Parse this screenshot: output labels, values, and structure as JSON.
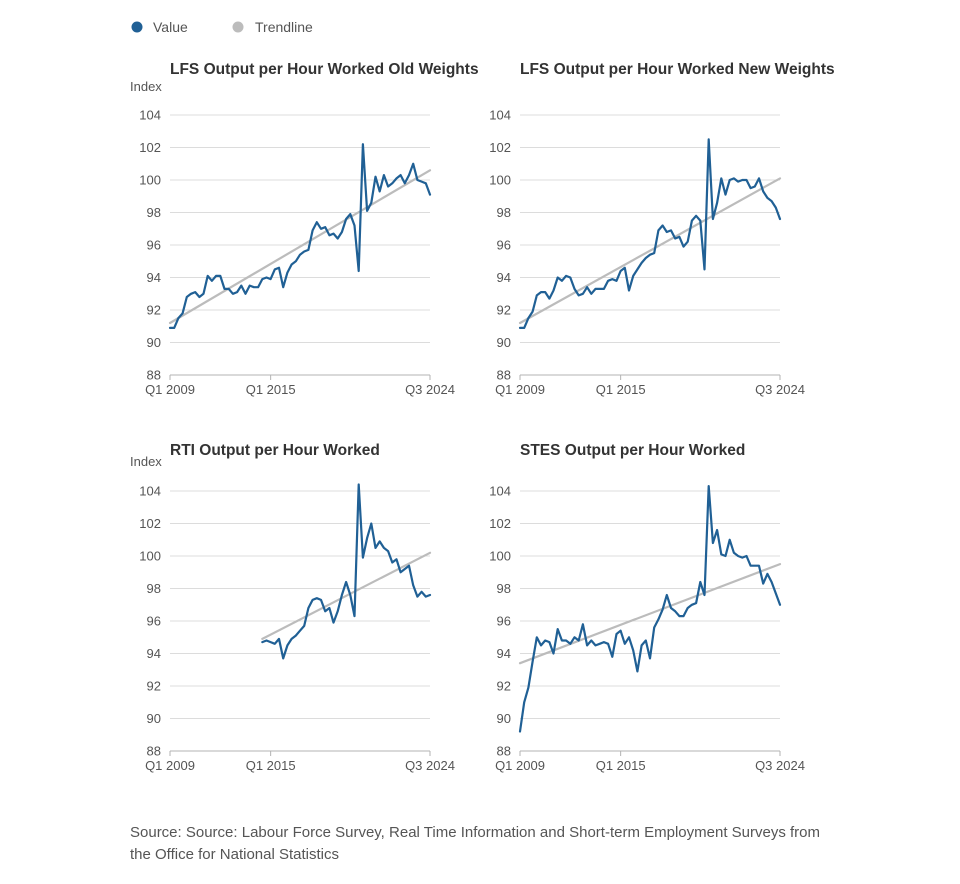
{
  "legend": [
    {
      "label": "Value",
      "color": "#206095"
    },
    {
      "label": "Trendline",
      "color": "#bcbcbc"
    }
  ],
  "source": "Source: Source: Labour Force Survey, Real Time Information and Short-term Employment Surveys from the Office for National Statistics",
  "chart_data": [
    {
      "type": "line",
      "title": "LFS Output per Hour Worked Old Weights",
      "ylabel": "Index",
      "ylim": [
        88,
        104
      ],
      "yticks": [
        88,
        90,
        92,
        94,
        96,
        98,
        100,
        102,
        104
      ],
      "xlim": [
        0,
        62
      ],
      "xticks": [
        {
          "pos": 0,
          "label": "Q1 2009"
        },
        {
          "pos": 24,
          "label": "Q1 2015"
        },
        {
          "pos": 62,
          "label": "Q3 2024"
        }
      ],
      "grid": true,
      "series": [
        {
          "name": "Value",
          "color": "#206095",
          "x": [
            0,
            1,
            2,
            3,
            4,
            5,
            6,
            7,
            8,
            9,
            10,
            11,
            12,
            13,
            14,
            15,
            16,
            17,
            18,
            19,
            20,
            21,
            22,
            23,
            24,
            25,
            26,
            27,
            28,
            29,
            30,
            31,
            32,
            33,
            34,
            35,
            36,
            37,
            38,
            39,
            40,
            41,
            42,
            43,
            44,
            45,
            46,
            47,
            48,
            49,
            50,
            51,
            52,
            53,
            54,
            55,
            56,
            57,
            58,
            59,
            60,
            61,
            62
          ],
          "values": [
            90.9,
            90.9,
            91.5,
            91.8,
            92.8,
            93.0,
            93.1,
            92.8,
            93.0,
            94.1,
            93.8,
            94.1,
            94.1,
            93.3,
            93.3,
            93.0,
            93.1,
            93.5,
            93.0,
            93.5,
            93.4,
            93.4,
            93.9,
            94.0,
            93.9,
            94.5,
            94.6,
            93.4,
            94.3,
            94.8,
            95.0,
            95.4,
            95.6,
            95.7,
            96.9,
            97.4,
            97.0,
            97.1,
            96.6,
            96.7,
            96.4,
            96.8,
            97.6,
            97.9,
            97.2,
            94.4,
            102.2,
            98.1,
            98.6,
            100.2,
            99.3,
            100.3,
            99.6,
            99.8,
            100.1,
            100.3,
            99.8,
            100.3,
            101.0,
            100.0,
            99.9,
            99.8,
            99.1
          ]
        },
        {
          "name": "Trendline",
          "color": "#bcbcbc",
          "x": [
            0,
            62
          ],
          "values": [
            91.2,
            100.6
          ]
        }
      ]
    },
    {
      "type": "line",
      "title": "LFS Output per Hour Worked New Weights",
      "ylabel": "",
      "ylim": [
        88,
        104
      ],
      "yticks": [
        88,
        90,
        92,
        94,
        96,
        98,
        100,
        102,
        104
      ],
      "xlim": [
        0,
        62
      ],
      "xticks": [
        {
          "pos": 0,
          "label": "Q1 2009"
        },
        {
          "pos": 24,
          "label": "Q1 2015"
        },
        {
          "pos": 62,
          "label": "Q3 2024"
        }
      ],
      "grid": true,
      "series": [
        {
          "name": "Value",
          "color": "#206095",
          "x": [
            0,
            1,
            2,
            3,
            4,
            5,
            6,
            7,
            8,
            9,
            10,
            11,
            12,
            13,
            14,
            15,
            16,
            17,
            18,
            19,
            20,
            21,
            22,
            23,
            24,
            25,
            26,
            27,
            28,
            29,
            30,
            31,
            32,
            33,
            34,
            35,
            36,
            37,
            38,
            39,
            40,
            41,
            42,
            43,
            44,
            45,
            46,
            47,
            48,
            49,
            50,
            51,
            52,
            53,
            54,
            55,
            56,
            57,
            58,
            59,
            60,
            61,
            62
          ],
          "values": [
            90.9,
            90.9,
            91.5,
            91.9,
            92.9,
            93.1,
            93.1,
            92.7,
            93.2,
            94.0,
            93.8,
            94.1,
            94.0,
            93.3,
            92.9,
            93.0,
            93.4,
            93.0,
            93.3,
            93.3,
            93.3,
            93.8,
            93.9,
            93.8,
            94.4,
            94.6,
            93.2,
            94.1,
            94.5,
            94.9,
            95.2,
            95.4,
            95.5,
            96.9,
            97.2,
            96.8,
            96.9,
            96.4,
            96.5,
            95.9,
            96.2,
            97.5,
            97.8,
            97.5,
            94.5,
            102.5,
            97.6,
            98.6,
            100.1,
            99.1,
            100.0,
            100.1,
            99.9,
            100.0,
            100.0,
            99.5,
            99.6,
            100.1,
            99.3,
            98.9,
            98.7,
            98.3,
            97.6
          ]
        },
        {
          "name": "Trendline",
          "color": "#bcbcbc",
          "x": [
            0,
            62
          ],
          "values": [
            91.2,
            100.1
          ]
        }
      ]
    },
    {
      "type": "line",
      "title": "RTI Output per Hour Worked",
      "ylabel": "Index",
      "ylim": [
        88,
        104
      ],
      "yticks": [
        88,
        90,
        92,
        94,
        96,
        98,
        100,
        102,
        104
      ],
      "xlim": [
        0,
        62
      ],
      "xticks": [
        {
          "pos": 0,
          "label": "Q1 2009"
        },
        {
          "pos": 24,
          "label": "Q1 2015"
        },
        {
          "pos": 62,
          "label": "Q3 2024"
        }
      ],
      "grid": true,
      "series": [
        {
          "name": "Value",
          "color": "#206095",
          "x": [
            22,
            23,
            24,
            25,
            26,
            27,
            28,
            29,
            30,
            31,
            32,
            33,
            34,
            35,
            36,
            37,
            38,
            39,
            40,
            41,
            42,
            43,
            44,
            45,
            46,
            47,
            48,
            49,
            50,
            51,
            52,
            53,
            54,
            55,
            56,
            57,
            58,
            59,
            60,
            61,
            62
          ],
          "values": [
            94.7,
            94.8,
            94.7,
            94.6,
            94.9,
            93.7,
            94.5,
            94.9,
            95.1,
            95.4,
            95.7,
            96.8,
            97.3,
            97.4,
            97.3,
            96.6,
            96.8,
            95.9,
            96.6,
            97.6,
            98.4,
            97.6,
            96.3,
            104.4,
            99.9,
            101.1,
            102.0,
            100.5,
            100.9,
            100.5,
            100.3,
            99.6,
            99.8,
            99.0,
            99.2,
            99.4,
            98.2,
            97.5,
            97.8,
            97.5,
            97.6
          ]
        },
        {
          "name": "Trendline",
          "color": "#bcbcbc",
          "x": [
            22,
            62
          ],
          "values": [
            94.9,
            100.2
          ]
        }
      ]
    },
    {
      "type": "line",
      "title": "STES Output per Hour Worked",
      "ylabel": "",
      "ylim": [
        88,
        104
      ],
      "yticks": [
        88,
        90,
        92,
        94,
        96,
        98,
        100,
        102,
        104
      ],
      "xlim": [
        0,
        62
      ],
      "xticks": [
        {
          "pos": 0,
          "label": "Q1 2009"
        },
        {
          "pos": 24,
          "label": "Q1 2015"
        },
        {
          "pos": 62,
          "label": "Q3 2024"
        }
      ],
      "grid": true,
      "series": [
        {
          "name": "Value",
          "color": "#206095",
          "x": [
            0,
            1,
            2,
            3,
            4,
            5,
            6,
            7,
            8,
            9,
            10,
            11,
            12,
            13,
            14,
            15,
            16,
            17,
            18,
            19,
            20,
            21,
            22,
            23,
            24,
            25,
            26,
            27,
            28,
            29,
            30,
            31,
            32,
            33,
            34,
            35,
            36,
            37,
            38,
            39,
            40,
            41,
            42,
            43,
            44,
            45,
            46,
            47,
            48,
            49,
            50,
            51,
            52,
            53,
            54,
            55,
            56,
            57,
            58,
            59,
            60,
            61,
            62
          ],
          "values": [
            89.2,
            91.0,
            91.9,
            93.5,
            95.0,
            94.5,
            94.8,
            94.7,
            94.0,
            95.5,
            94.8,
            94.8,
            94.6,
            95.0,
            94.8,
            95.8,
            94.5,
            94.8,
            94.5,
            94.6,
            94.7,
            94.6,
            93.8,
            95.2,
            95.4,
            94.6,
            95.0,
            94.2,
            92.9,
            94.5,
            94.8,
            93.7,
            95.6,
            96.1,
            96.7,
            97.6,
            96.8,
            96.6,
            96.3,
            96.3,
            96.8,
            97.0,
            97.1,
            98.4,
            97.6,
            104.3,
            100.8,
            101.6,
            100.1,
            100.0,
            101.0,
            100.2,
            100.0,
            99.9,
            100.0,
            99.4,
            99.4,
            99.4,
            98.3,
            98.9,
            98.4,
            97.7,
            97.0
          ]
        },
        {
          "name": "Trendline",
          "color": "#bcbcbc",
          "x": [
            0,
            62
          ],
          "values": [
            93.4,
            99.5
          ]
        }
      ]
    }
  ]
}
